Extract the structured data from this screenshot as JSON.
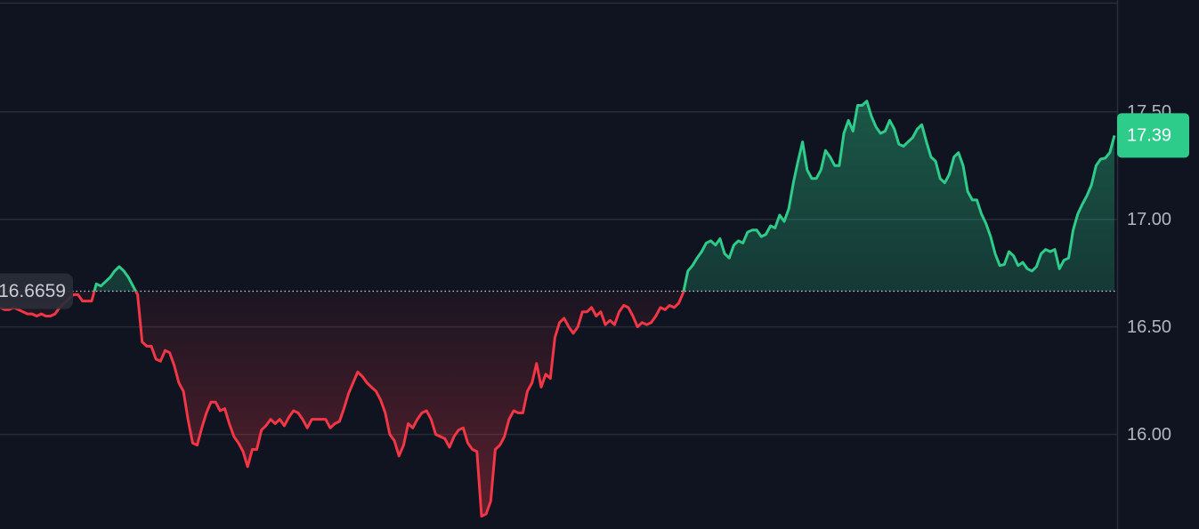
{
  "chart_data": {
    "type": "baseline",
    "baseline": 16.6659,
    "ylim": [
      15.56,
      18.02
    ],
    "yticks": [
      {
        "value": 16,
        "label": "16.00"
      },
      {
        "value": 16.5,
        "label": "16.50"
      },
      {
        "value": 17,
        "label": "17.00"
      },
      {
        "value": 17.5,
        "label": "17.50"
      }
    ],
    "grid": true,
    "color_above": "#2ecc8a",
    "color_below": "#f23645",
    "series": [
      {
        "values": [
          16.59,
          16.58,
          16.58,
          16.59,
          16.58,
          16.57,
          16.56,
          16.56,
          16.55,
          16.56,
          16.55,
          16.55,
          16.56,
          16.59,
          16.61,
          16.63,
          16.65,
          16.65,
          16.62,
          16.62,
          16.62,
          16.7,
          16.69,
          16.71,
          16.73,
          16.76,
          16.78,
          16.76,
          16.73,
          16.69,
          16.65,
          16.43,
          16.41,
          16.41,
          16.35,
          16.34,
          16.39,
          16.38,
          16.32,
          16.24,
          16.2,
          16.07,
          15.96,
          15.95,
          16.03,
          16.1,
          16.15,
          16.15,
          16.11,
          16.12,
          16.05,
          15.99,
          15.96,
          15.92,
          15.85,
          15.93,
          15.93,
          16.02,
          16.04,
          16.07,
          16.05,
          16.07,
          16.04,
          16.08,
          16.11,
          16.1,
          16.07,
          16.03,
          16.07,
          16.07,
          16.07,
          16.07,
          16.03,
          16.05,
          16.06,
          16.12,
          16.19,
          16.24,
          16.29,
          16.27,
          16.24,
          16.22,
          16.2,
          16.16,
          16.1,
          16.0,
          15.97,
          15.9,
          15.95,
          16.05,
          16.03,
          16.07,
          16.1,
          16.11,
          16.07,
          16.0,
          15.99,
          15.98,
          15.94,
          15.99,
          16.02,
          16.03,
          15.96,
          15.93,
          15.92,
          15.62,
          15.63,
          15.69,
          15.93,
          15.95,
          15.99,
          16.07,
          16.11,
          16.1,
          16.1,
          16.2,
          16.24,
          16.33,
          16.22,
          16.28,
          16.26,
          16.45,
          16.52,
          16.54,
          16.5,
          16.47,
          16.5,
          16.57,
          16.57,
          16.59,
          16.55,
          16.57,
          16.51,
          16.53,
          16.51,
          16.57,
          16.6,
          16.59,
          16.55,
          16.5,
          16.52,
          16.51,
          16.52,
          16.55,
          16.59,
          16.58,
          16.6,
          16.59,
          16.61,
          16.66,
          16.76,
          16.785,
          16.82,
          16.85,
          16.89,
          16.9,
          16.88,
          16.91,
          16.84,
          16.82,
          16.88,
          16.9,
          16.89,
          16.94,
          16.95,
          16.95,
          16.92,
          16.93,
          16.97,
          16.96,
          17.02,
          16.99,
          17.05,
          17.17,
          17.27,
          17.36,
          17.23,
          17.19,
          17.19,
          17.23,
          17.32,
          17.29,
          17.25,
          17.25,
          17.4,
          17.46,
          17.41,
          17.53,
          17.53,
          17.55,
          17.48,
          17.43,
          17.4,
          17.41,
          17.46,
          17.42,
          17.35,
          17.34,
          17.36,
          17.38,
          17.42,
          17.44,
          17.36,
          17.29,
          17.27,
          17.19,
          17.17,
          17.21,
          17.29,
          17.31,
          17.25,
          17.13,
          17.09,
          17.09,
          17.025,
          16.98,
          16.92,
          16.84,
          16.785,
          16.79,
          16.85,
          16.83,
          16.785,
          16.8,
          16.77,
          16.76,
          16.78,
          16.84,
          16.86,
          16.85,
          16.86,
          16.77,
          16.81,
          16.82,
          16.95,
          17.025,
          17.07,
          17.11,
          17.16,
          17.25,
          17.28,
          17.285,
          17.31,
          17.39
        ]
      }
    ]
  }
}
